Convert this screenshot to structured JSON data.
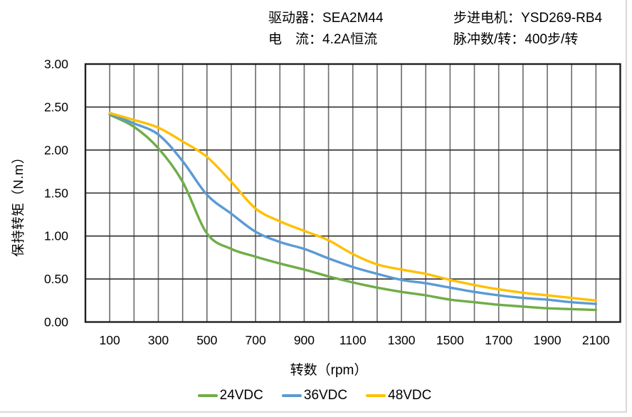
{
  "header": {
    "driver": {
      "label": "驱动器：",
      "value": "SEA2M44"
    },
    "current": {
      "label": "电　流：",
      "value": "4.2A恒流"
    },
    "motor": {
      "label": "步进电机：",
      "value": "YSD269-RB4"
    },
    "pulses": {
      "label": "脉冲数/转：",
      "value": "400步/转"
    }
  },
  "chart_data": {
    "type": "line",
    "title": "",
    "xlabel": "转数（rpm）",
    "ylabel": "保持转矩（N.m）",
    "xlim": [
      0,
      2200
    ],
    "ylim": [
      0,
      3.0
    ],
    "x_grid_step": 100,
    "y_grid_step": 0.5,
    "grid": true,
    "legend_position": "bottom",
    "x_ticks": [
      100,
      300,
      500,
      700,
      900,
      1100,
      1300,
      1500,
      1700,
      1900,
      2100
    ],
    "y_tick_labels": [
      "0.00",
      "0.50",
      "1.00",
      "1.50",
      "2.00",
      "2.50",
      "3.00"
    ],
    "x": [
      100,
      200,
      300,
      400,
      500,
      600,
      700,
      800,
      900,
      1000,
      1100,
      1200,
      1300,
      1400,
      1500,
      1600,
      1700,
      1800,
      1900,
      2000,
      2100
    ],
    "series": [
      {
        "name": "24VDC",
        "color": "#70AD47",
        "values": [
          2.41,
          2.27,
          2.02,
          1.63,
          1.03,
          0.85,
          0.76,
          0.68,
          0.61,
          0.53,
          0.46,
          0.4,
          0.35,
          0.31,
          0.26,
          0.23,
          0.2,
          0.18,
          0.16,
          0.15,
          0.14
        ]
      },
      {
        "name": "36VDC",
        "color": "#5B9BD5",
        "values": [
          2.42,
          2.31,
          2.18,
          1.87,
          1.48,
          1.26,
          1.05,
          0.93,
          0.85,
          0.74,
          0.64,
          0.56,
          0.49,
          0.45,
          0.4,
          0.35,
          0.31,
          0.28,
          0.26,
          0.23,
          0.21
        ]
      },
      {
        "name": "48VDC",
        "color": "#FFC000",
        "values": [
          2.43,
          2.35,
          2.26,
          2.1,
          1.92,
          1.63,
          1.32,
          1.17,
          1.06,
          0.95,
          0.79,
          0.67,
          0.61,
          0.56,
          0.49,
          0.43,
          0.38,
          0.34,
          0.31,
          0.28,
          0.25
        ]
      }
    ],
    "grid_color_vertical": "#6b6b6b",
    "grid_color_horizontal": "#2e2e2e",
    "border_color": "#1f1f1f"
  }
}
